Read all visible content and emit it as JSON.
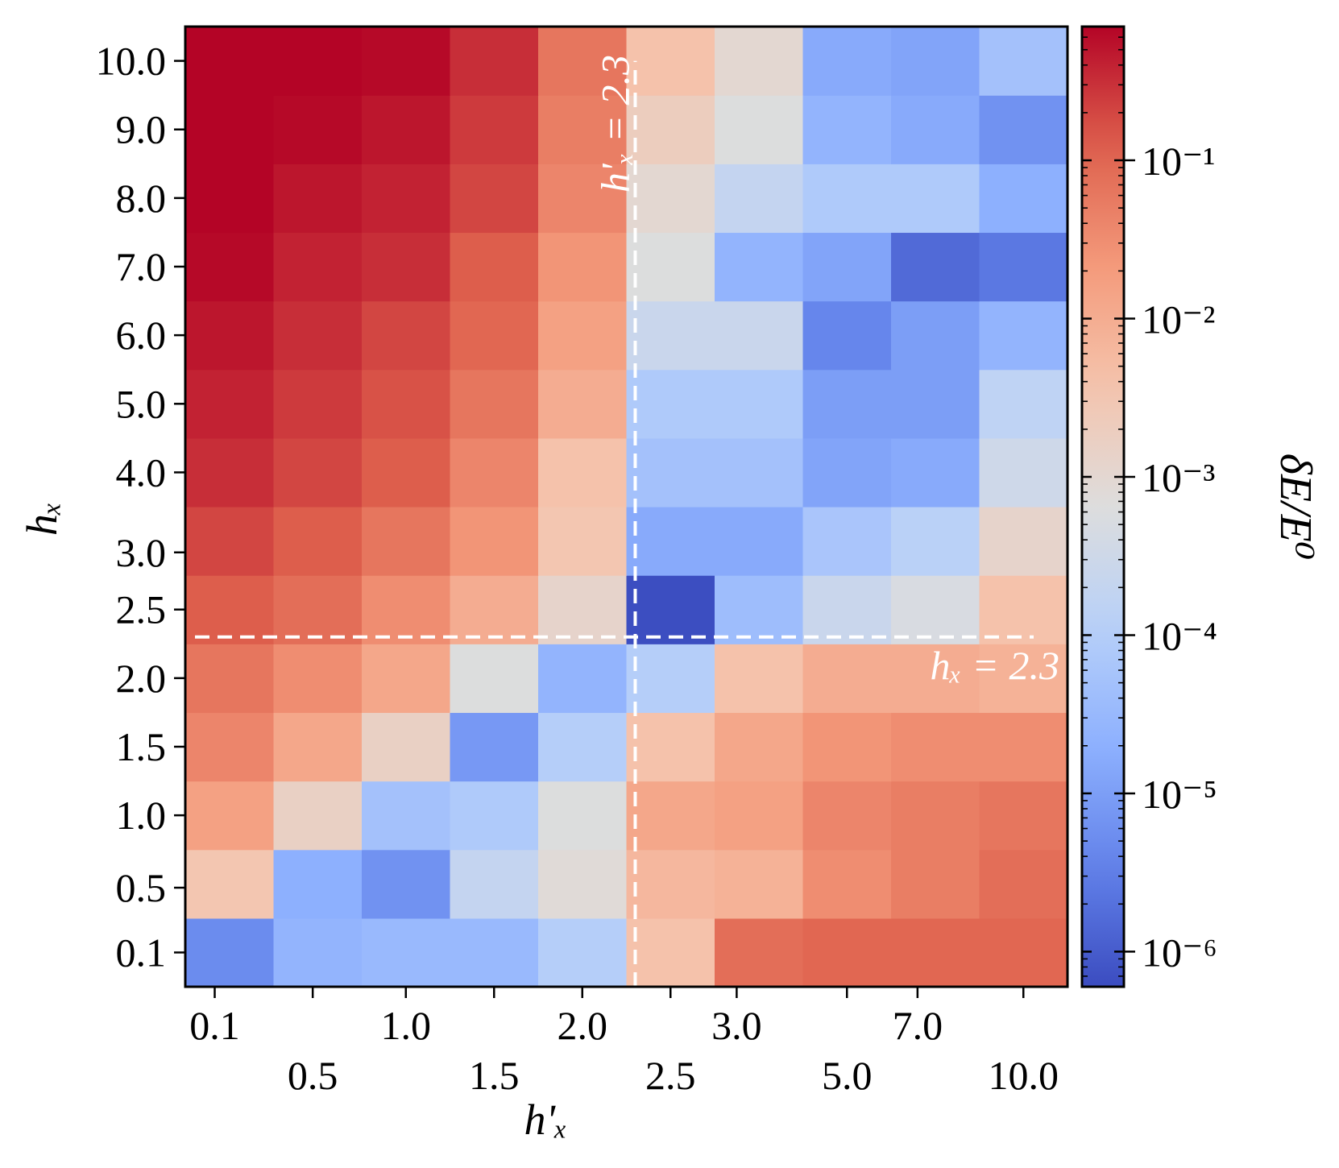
{
  "chart_data": {
    "type": "heatmap",
    "x_label": "h'ₓ",
    "y_label": "hₓ",
    "colorbar_label": "δE/E⁰",
    "colormap": "coolwarm",
    "color_scale": "log",
    "color_range": [
      6e-07,
      0.7
    ],
    "x_edges": [
      0.0,
      0.3,
      0.75,
      1.25,
      1.75,
      2.25,
      2.75,
      3.75,
      6.25,
      8.75,
      11.25
    ],
    "y_edges": [
      -0.1,
      0.3,
      0.75,
      1.25,
      1.75,
      2.25,
      2.75,
      3.5,
      4.5,
      5.5,
      6.5,
      7.5,
      8.5,
      9.5,
      10.5
    ],
    "x_ticks": [
      {
        "value": 0.1,
        "label": "0.1",
        "row": 0
      },
      {
        "value": 0.5,
        "label": "0.5",
        "row": 1
      },
      {
        "value": 1.0,
        "label": "1.0",
        "row": 0
      },
      {
        "value": 1.5,
        "label": "1.5",
        "row": 1
      },
      {
        "value": 2.0,
        "label": "2.0",
        "row": 0
      },
      {
        "value": 2.5,
        "label": "2.5",
        "row": 1
      },
      {
        "value": 3.0,
        "label": "3.0",
        "row": 0
      },
      {
        "value": 5.0,
        "label": "5.0",
        "row": 1
      },
      {
        "value": 7.0,
        "label": "7.0",
        "row": 0
      },
      {
        "value": 10.0,
        "label": "10.0",
        "row": 1
      }
    ],
    "y_ticks": [
      {
        "value": 0.1,
        "label": "0.1"
      },
      {
        "value": 0.5,
        "label": "0.5"
      },
      {
        "value": 1.0,
        "label": "1.0"
      },
      {
        "value": 1.5,
        "label": "1.5"
      },
      {
        "value": 2.0,
        "label": "2.0"
      },
      {
        "value": 2.5,
        "label": "2.5"
      },
      {
        "value": 3.0,
        "label": "3.0"
      },
      {
        "value": 4.0,
        "label": "4.0"
      },
      {
        "value": 5.0,
        "label": "5.0"
      },
      {
        "value": 6.0,
        "label": "6.0"
      },
      {
        "value": 7.0,
        "label": "7.0"
      },
      {
        "value": 8.0,
        "label": "8.0"
      },
      {
        "value": 9.0,
        "label": "9.0"
      },
      {
        "value": 10.0,
        "label": "10.0"
      }
    ],
    "log10_values": [
      [
        -5.3,
        -4.6,
        -4.5,
        -4.5,
        -4.0,
        -2.4,
        -1.1,
        -1.0,
        -1.0,
        -1.0
      ],
      [
        -2.5,
        -4.7,
        -5.2,
        -3.7,
        -3.1,
        -2.2,
        -2.1,
        -1.5,
        -1.3,
        -1.1
      ],
      [
        -1.8,
        -2.8,
        -4.3,
        -4.1,
        -3.2,
        -1.9,
        -1.8,
        -1.4,
        -1.3,
        -1.2
      ],
      [
        -1.4,
        -1.9,
        -2.8,
        -5.1,
        -4.0,
        -2.4,
        -1.9,
        -1.6,
        -1.5,
        -1.5
      ],
      [
        -1.2,
        -1.5,
        -1.9,
        -3.2,
        -4.6,
        -4.0,
        -2.4,
        -2.0,
        -2.0,
        -2.1
      ],
      [
        -0.9,
        -1.1,
        -1.5,
        -2.0,
        -2.9,
        -6.2,
        -4.4,
        -3.6,
        -3.3,
        -2.4
      ],
      [
        -0.7,
        -0.9,
        -1.2,
        -1.6,
        -2.5,
        -4.8,
        -4.8,
        -4.2,
        -3.9,
        -2.9
      ],
      [
        -0.5,
        -0.7,
        -0.9,
        -1.4,
        -2.4,
        -4.3,
        -4.3,
        -4.9,
        -4.8,
        -3.5
      ],
      [
        -0.4,
        -0.6,
        -0.8,
        -1.2,
        -2.0,
        -4.1,
        -4.1,
        -5.0,
        -5.0,
        -3.8
      ],
      [
        -0.3,
        -0.5,
        -0.7,
        -1.0,
        -1.8,
        -3.6,
        -3.6,
        -5.4,
        -5.0,
        -4.6
      ],
      [
        -0.2,
        -0.4,
        -0.5,
        -0.9,
        -1.6,
        -3.2,
        -4.6,
        -4.9,
        -5.8,
        -5.6
      ],
      [
        -0.1,
        -0.3,
        -0.4,
        -0.7,
        -1.4,
        -3.0,
        -3.7,
        -4.1,
        -4.1,
        -4.7
      ],
      [
        0.0,
        -0.2,
        -0.3,
        -0.6,
        -1.3,
        -2.7,
        -3.2,
        -4.6,
        -4.8,
        -5.2
      ],
      [
        0.0,
        -0.1,
        -0.2,
        -0.5,
        -1.2,
        -2.4,
        -3.0,
        -4.8,
        -4.9,
        -4.3
      ]
    ],
    "threshold_lines": [
      {
        "axis": "x",
        "value": 2.3,
        "label": "h'ₓ = 2.3"
      },
      {
        "axis": "y",
        "value": 2.3,
        "label": "hₓ = 2.3"
      }
    ],
    "colorbar_ticks": [
      {
        "exp": -1,
        "label": "10⁻¹"
      },
      {
        "exp": -2,
        "label": "10⁻²"
      },
      {
        "exp": -3,
        "label": "10⁻³"
      },
      {
        "exp": -4,
        "label": "10⁻⁴"
      },
      {
        "exp": -5,
        "label": "10⁻⁵"
      },
      {
        "exp": -6,
        "label": "10⁻⁶"
      }
    ]
  }
}
